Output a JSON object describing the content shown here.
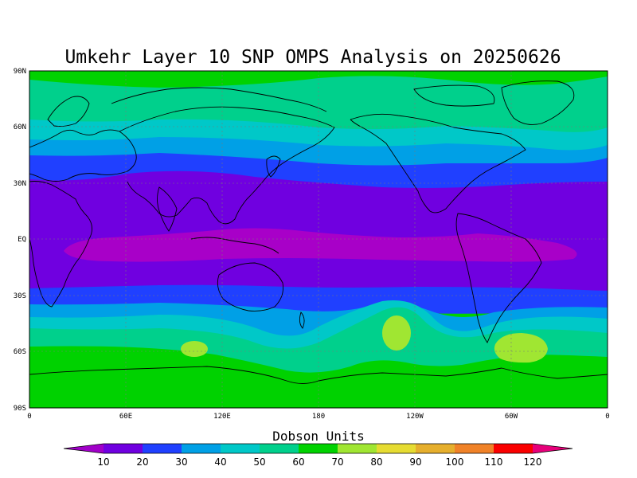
{
  "title": "Umkehr Layer 10 SNP OMPS Analysis on 20250626",
  "map": {
    "lat_labels": [
      "90N",
      "60N",
      "30N",
      "EQ",
      "30S",
      "60S",
      "90S"
    ],
    "lon_labels": [
      "0",
      "60E",
      "120E",
      "180",
      "120W",
      "60W",
      "0"
    ],
    "colors": {
      "band_0_10": "#a800c8",
      "band_10_20": "#7000e0",
      "band_20_30": "#2040ff",
      "band_30_40": "#00a0e6",
      "band_40_50": "#00c8c8",
      "band_50_60": "#00d08c",
      "band_60_70": "#00d200",
      "band_70_80": "#a0e632",
      "coastline": "#000000"
    }
  },
  "colorbar": {
    "title": "Dobson Units",
    "tick_labels": [
      "10",
      "20",
      "30",
      "40",
      "50",
      "60",
      "70",
      "80",
      "90",
      "100",
      "110",
      "120"
    ],
    "colors": [
      "#a000c8",
      "#7000e0",
      "#2040ff",
      "#00a0e6",
      "#00c8c8",
      "#00d08c",
      "#00d200",
      "#a0e632",
      "#e6dc32",
      "#e6af2d",
      "#f08228",
      "#fa0000",
      "#e6007a"
    ]
  }
}
